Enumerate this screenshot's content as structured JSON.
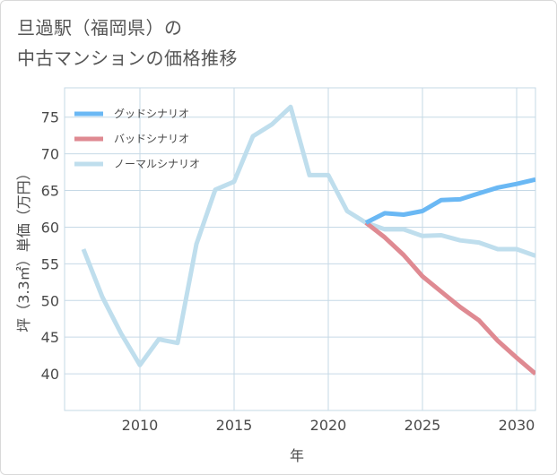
{
  "title_line1": "旦過駅（福岡県）の",
  "title_line2": "中古マンションの価格推移",
  "colors": {
    "good": "#6ab8f4",
    "bad": "#df8a92",
    "normal": "#bfdeed",
    "grid": "#c6d9e6",
    "axis_text": "#4a4a4a"
  },
  "chart_data": {
    "type": "line",
    "xlabel": "年",
    "ylabel": "坪（3.3㎡）単価（万円）",
    "xlim": [
      2006,
      2031
    ],
    "ylim": [
      35,
      79
    ],
    "x_ticks": [
      2010,
      2015,
      2020,
      2025,
      2030
    ],
    "y_ticks": [
      40,
      45,
      50,
      55,
      60,
      65,
      70,
      75
    ],
    "legend_position": "top-left",
    "series": [
      {
        "key": "good",
        "name": "グッドシナリオ",
        "x": [
          2022,
          2023,
          2024,
          2025,
          2026,
          2027,
          2028,
          2029,
          2030,
          2031
        ],
        "values": [
          60.6,
          61.9,
          61.7,
          62.2,
          63.7,
          63.8,
          64.6,
          65.4,
          65.9,
          66.5
        ]
      },
      {
        "key": "bad",
        "name": "バッドシナリオ",
        "x": [
          2022,
          2023,
          2024,
          2025,
          2026,
          2027,
          2028,
          2029,
          2030,
          2031
        ],
        "values": [
          60.6,
          58.6,
          56.2,
          53.3,
          51.2,
          49.1,
          47.3,
          44.5,
          42.2,
          40.0
        ]
      },
      {
        "key": "normal",
        "name": "ノーマルシナリオ",
        "x": [
          2007,
          2008,
          2009,
          2010,
          2011,
          2012,
          2013,
          2014,
          2015,
          2016,
          2017,
          2018,
          2019,
          2020,
          2021,
          2022,
          2023,
          2024,
          2025,
          2026,
          2027,
          2028,
          2029,
          2030,
          2031
        ],
        "values": [
          57.0,
          50.5,
          45.5,
          41.2,
          44.7,
          44.2,
          57.7,
          65.1,
          66.2,
          72.4,
          74.0,
          76.4,
          67.1,
          67.1,
          62.2,
          60.6,
          59.7,
          59.7,
          58.8,
          58.9,
          58.2,
          57.9,
          57.0,
          57.0,
          56.1
        ]
      }
    ]
  }
}
